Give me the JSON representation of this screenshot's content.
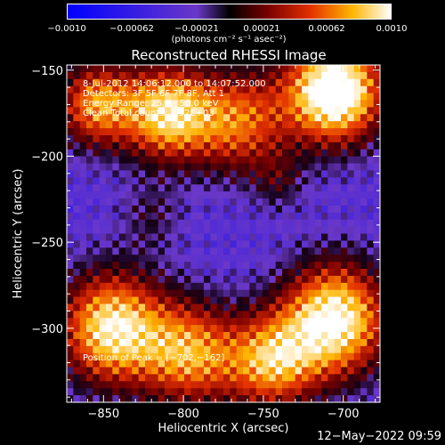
{
  "chart_data": {
    "type": "heatmap",
    "title": "Reconstructed RHESSI Image",
    "xlabel": "Heliocentric X (arcsec)",
    "ylabel": "Heliocentric Y (arcsec)",
    "xlim": [
      -873,
      -677
    ],
    "ylim": [
      -343,
      -147
    ],
    "x_ticks": [
      -850,
      -800,
      -750,
      -700
    ],
    "x_tick_labels": [
      "−850",
      "−800",
      "−750",
      "−700"
    ],
    "y_ticks": [
      -150,
      -200,
      -250,
      -300
    ],
    "y_tick_labels": [
      "−150",
      "−200",
      "−250",
      "−300"
    ],
    "grid": false,
    "colorbar": {
      "range": [
        -0.001,
        0.001
      ],
      "ticks": [
        "−0.0010",
        "−0.00062",
        "−0.00021",
        "0.00021",
        "0.00062",
        "0.0010"
      ],
      "tick_values": [
        -0.001,
        -0.00062,
        -0.00021,
        0.00021,
        0.00062,
        0.001
      ],
      "label": "(photons cm⁻² s⁻¹ asec⁻²)"
    },
    "annotations": [
      "8-Jul-2012 14:06:12.000 to 14:07:52.000",
      "Detectors: 3F 5F 6F 7F 8F, Att 1",
      "Energy Range: 25.0 - 50.0 keV",
      "Clean      Total counts: 1.52E+03"
    ],
    "peak_label": "Position of Peak = [−702,−162]",
    "peak": [
      -702,
      -162
    ]
  },
  "timestamp": "12−May−2022 09:59"
}
